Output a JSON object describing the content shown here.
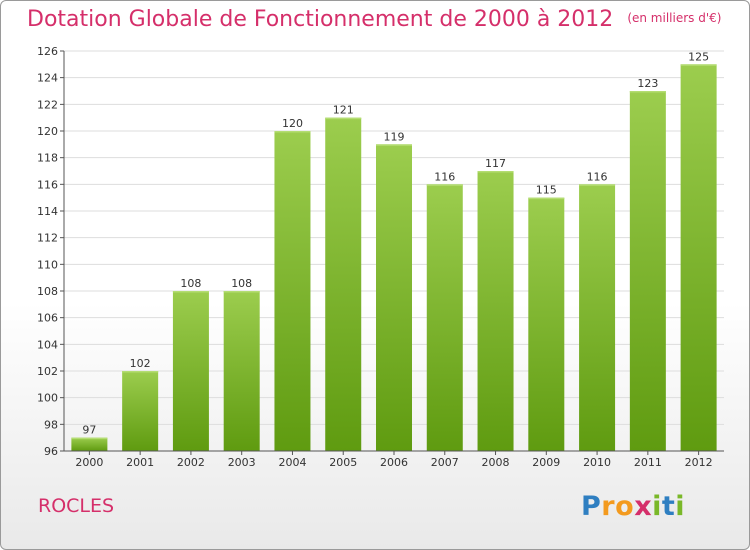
{
  "chart_data": {
    "type": "bar",
    "title": "Dotation Globale de Fonctionnement de 2000 à 2012",
    "subtitle": "(en milliers d'€)",
    "categories": [
      "2000",
      "2001",
      "2002",
      "2003",
      "2004",
      "2005",
      "2006",
      "2007",
      "2008",
      "2009",
      "2010",
      "2011",
      "2012"
    ],
    "values": [
      97,
      102,
      108,
      108,
      120,
      121,
      119,
      116,
      117,
      115,
      116,
      123,
      125
    ],
    "ylim": [
      96,
      126
    ],
    "yticks": [
      96,
      98,
      100,
      102,
      104,
      106,
      108,
      110,
      112,
      114,
      116,
      118,
      120,
      122,
      124,
      126
    ],
    "xlabel": "",
    "ylabel": "",
    "grid": true,
    "colors": {
      "bar_top": "#9ccd4e",
      "bar_bottom": "#5f9b10",
      "grid": "#dddddd",
      "axis": "#555555",
      "label": "#333333",
      "title": "#d52f6a"
    }
  },
  "footer": {
    "commune": "ROCLES"
  },
  "logo": {
    "letters": [
      {
        "char": "P",
        "color": "#2f7fc1"
      },
      {
        "char": "r",
        "color": "#f39a1e"
      },
      {
        "char": "o",
        "color": "#f39a1e"
      },
      {
        "char": "x",
        "color": "#d52f6a"
      },
      {
        "char": "i",
        "color": "#7ab829"
      },
      {
        "char": "t",
        "color": "#2f7fc1"
      },
      {
        "char": "i",
        "color": "#7ab829"
      }
    ]
  }
}
